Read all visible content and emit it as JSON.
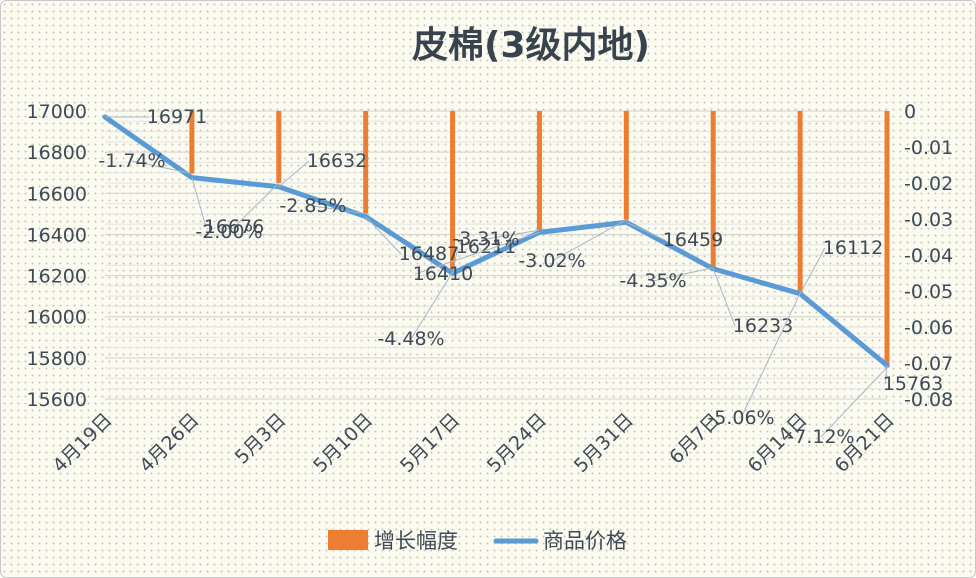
{
  "chart_data": {
    "type": "bar+line",
    "title": "皮棉(3级内地)",
    "categories": [
      "4月19日",
      "4月26日",
      "5月3日",
      "5月10日",
      "5月17日",
      "5月24日",
      "5月31日",
      "6月7日",
      "6月14日",
      "6月21日"
    ],
    "series": [
      {
        "name": "增长幅度",
        "type": "bar",
        "axis": "right",
        "color": "#ed7d31",
        "values": [
          null,
          -0.0174,
          -0.02,
          -0.0285,
          -0.0448,
          -0.0331,
          -0.0302,
          -0.0435,
          -0.0506,
          -0.0712
        ],
        "labels": [
          "",
          "-1.74%",
          "-2.00%",
          "-2.85%",
          "-4.48%",
          "-3.31%",
          "-3.02%",
          "-4.35%",
          "-5.06%",
          "-7.12%"
        ]
      },
      {
        "name": "商品价格",
        "type": "line",
        "axis": "left",
        "color": "#5b9bd5",
        "values": [
          16971,
          16676,
          16632,
          16487,
          16211,
          16410,
          16459,
          16233,
          16112,
          15763
        ],
        "labels": [
          "16971",
          "16676",
          "16632",
          "16487",
          "16211",
          "16410",
          "16459",
          "16233",
          "16112",
          "15763"
        ]
      }
    ],
    "y_left": {
      "ticks": [
        "17000",
        "16800",
        "16600",
        "16400",
        "16200",
        "16000",
        "15800",
        "15600"
      ],
      "range": [
        15600,
        17000
      ]
    },
    "y_right": {
      "ticks": [
        "0",
        "-0.01",
        "-0.02",
        "-0.03",
        "-0.04",
        "-0.05",
        "-0.06",
        "-0.07",
        "-0.08"
      ],
      "range": [
        -0.08,
        0
      ]
    },
    "grid": true,
    "legend": "bottom"
  }
}
